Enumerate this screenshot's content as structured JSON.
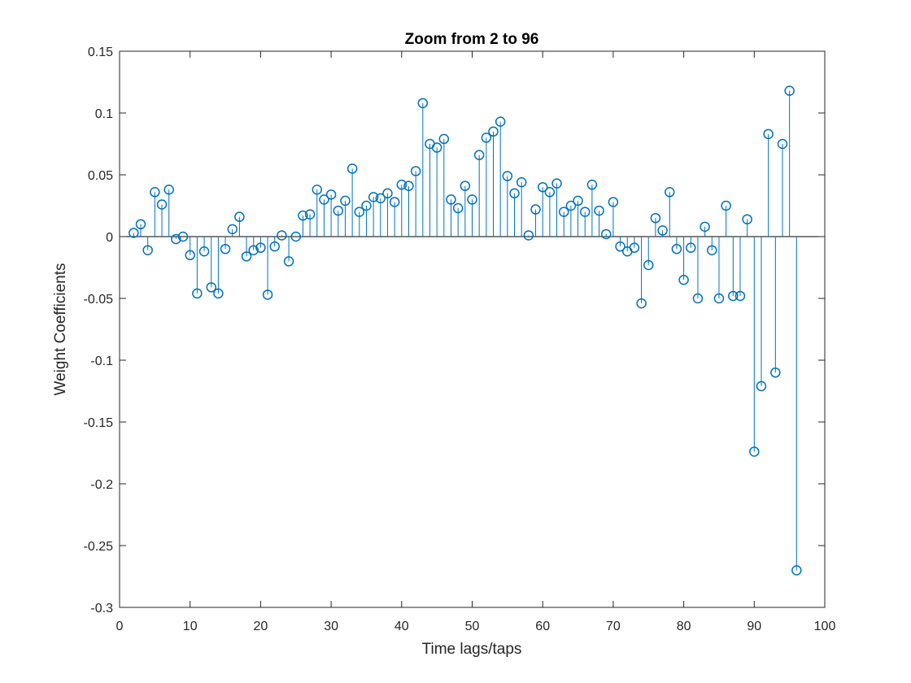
{
  "chart_data": {
    "type": "stem",
    "title": "Zoom from 2 to 96",
    "xlabel": "Time lags/taps",
    "ylabel": "Weight Coefficients",
    "xlim": [
      0,
      100
    ],
    "ylim": [
      -0.3,
      0.15
    ],
    "xticks": [
      0,
      10,
      20,
      30,
      40,
      50,
      60,
      70,
      80,
      90,
      100
    ],
    "xtick_labels": [
      "0",
      "10",
      "20",
      "30",
      "40",
      "50",
      "60",
      "70",
      "80",
      "90",
      "100"
    ],
    "yticks": [
      0.15,
      0.1,
      0.05,
      0,
      -0.05,
      -0.1,
      -0.15,
      -0.2,
      -0.25,
      -0.3
    ],
    "ytick_labels": [
      "0.15",
      "0.1",
      "0.05",
      "0",
      "-0.05",
      "-0.1",
      "-0.15",
      "-0.2",
      "-0.25",
      "-0.3"
    ],
    "grid": false,
    "series_color": "#0072BD",
    "x": [
      2,
      3,
      4,
      5,
      6,
      7,
      8,
      9,
      10,
      11,
      12,
      13,
      14,
      15,
      16,
      17,
      18,
      19,
      20,
      21,
      22,
      23,
      24,
      25,
      26,
      27,
      28,
      29,
      30,
      31,
      32,
      33,
      34,
      35,
      36,
      37,
      38,
      39,
      40,
      41,
      42,
      43,
      44,
      45,
      46,
      47,
      48,
      49,
      50,
      51,
      52,
      53,
      54,
      55,
      56,
      57,
      58,
      59,
      60,
      61,
      62,
      63,
      64,
      65,
      66,
      67,
      68,
      69,
      70,
      71,
      72,
      73,
      74,
      75,
      76,
      77,
      78,
      79,
      80,
      81,
      82,
      83,
      84,
      85,
      86,
      87,
      88,
      89,
      90,
      91,
      92,
      93,
      94,
      95,
      96
    ],
    "y": [
      0.003,
      0.01,
      -0.011,
      0.036,
      0.026,
      0.038,
      -0.002,
      0.0,
      -0.015,
      -0.046,
      -0.012,
      -0.041,
      -0.046,
      -0.01,
      0.006,
      0.016,
      -0.016,
      -0.011,
      -0.009,
      -0.047,
      -0.008,
      0.001,
      -0.02,
      0.0,
      0.017,
      0.018,
      0.038,
      0.03,
      0.034,
      0.021,
      0.029,
      0.055,
      0.02,
      0.025,
      0.032,
      0.031,
      0.035,
      0.028,
      0.042,
      0.041,
      0.053,
      0.108,
      0.075,
      0.072,
      0.079,
      0.03,
      0.023,
      0.041,
      0.03,
      0.066,
      0.08,
      0.085,
      0.093,
      0.049,
      0.035,
      0.044,
      0.001,
      0.022,
      0.04,
      0.036,
      0.043,
      0.02,
      0.025,
      0.029,
      0.02,
      0.042,
      0.021,
      0.002,
      0.028,
      -0.008,
      -0.012,
      -0.009,
      -0.054,
      -0.023,
      0.015,
      0.005,
      0.036,
      -0.01,
      -0.035,
      -0.009,
      -0.05,
      0.008,
      -0.011,
      -0.05,
      0.025,
      -0.048,
      -0.048,
      0.014,
      -0.174,
      -0.121,
      0.083,
      -0.11,
      0.075,
      0.118,
      -0.27
    ]
  }
}
